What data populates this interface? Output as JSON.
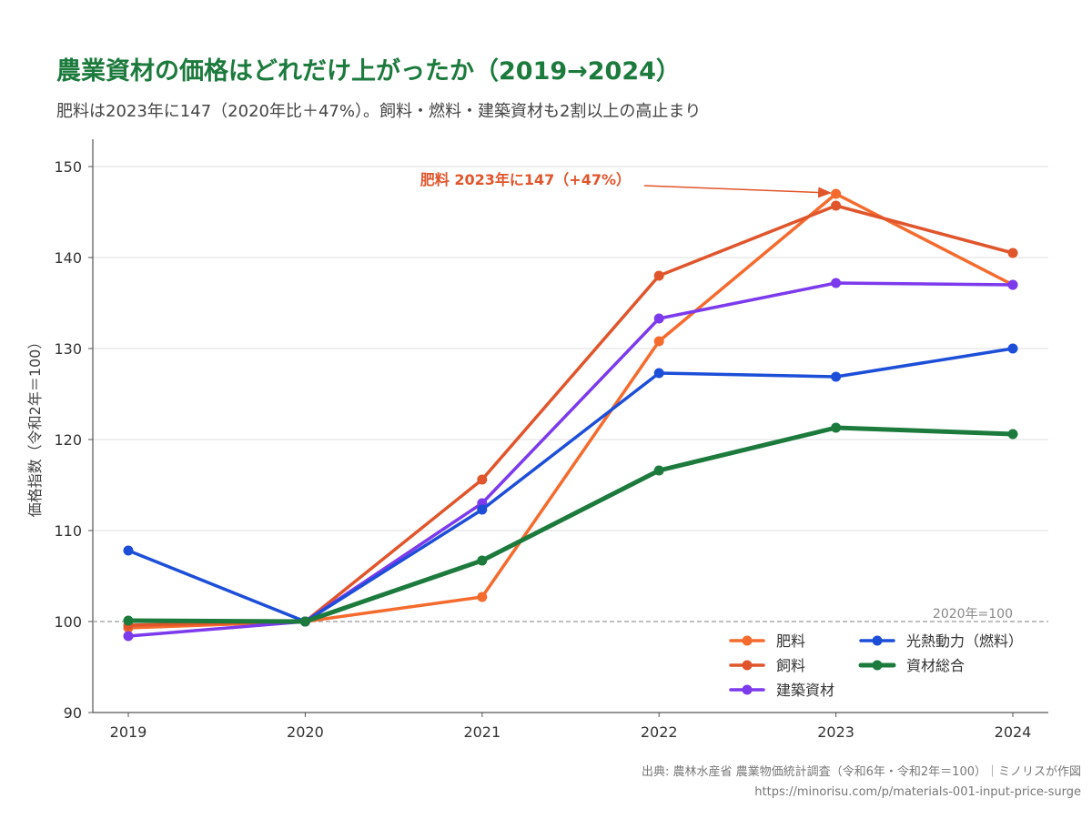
{
  "title": "農業資材の価格はどれだけ上がったか（2019→2024）",
  "subtitle": "肥料は2023年に147（2020年比＋47%）。飼料・燃料・建築資材も2割以上の高止まり",
  "source": {
    "line1": "出典: 農林水産省 農業物価統計調査（令和6年・令和2年＝100）｜ミノリスが作図",
    "line2": "https://minorisu.com/p/materials-001-input-price-surge"
  },
  "colors": {
    "fertilizer": "#f56b2e",
    "feed": "#e0552b",
    "building": "#7c3aed",
    "fuel": "#1d4ed8",
    "overall": "#1b7a3c",
    "annotation": "#e0552b",
    "grid": "#dddddd",
    "axis": "#555555",
    "reference": "#999999"
  },
  "chart_data": {
    "type": "line",
    "title": "農業資材の価格はどれだけ上がったか（2019→2024）",
    "ylabel": "価格指数（令和2年＝100）",
    "xlabel": "",
    "categories": [
      "2019",
      "2020",
      "2021",
      "2022",
      "2023",
      "2024"
    ],
    "ylim": [
      90,
      153
    ],
    "yticks": [
      90,
      100,
      110,
      120,
      130,
      140,
      150
    ],
    "grid": true,
    "legend_position": "bottom-right",
    "reference_line": {
      "value": 100,
      "label": "2020年=100"
    },
    "annotation": {
      "text": "肥料 2023年に147（+47%）",
      "series": "肥料",
      "x": "2023",
      "y": 147
    },
    "series": [
      {
        "name": "肥料",
        "key": "fertilizer",
        "values": [
          99.3,
          100,
          102.7,
          130.8,
          147.0,
          137.0
        ]
      },
      {
        "name": "飼料",
        "key": "feed",
        "values": [
          99.6,
          100,
          115.6,
          138.0,
          145.7,
          140.5
        ]
      },
      {
        "name": "建築資材",
        "key": "building",
        "values": [
          98.4,
          100,
          113.0,
          133.3,
          137.2,
          137.0
        ]
      },
      {
        "name": "光熱動力（燃料）",
        "key": "fuel",
        "values": [
          107.8,
          100,
          112.3,
          127.3,
          126.9,
          130.0
        ]
      },
      {
        "name": "資材総合",
        "key": "overall",
        "values": [
          100.1,
          100,
          106.7,
          116.6,
          121.3,
          120.6
        ]
      }
    ]
  }
}
